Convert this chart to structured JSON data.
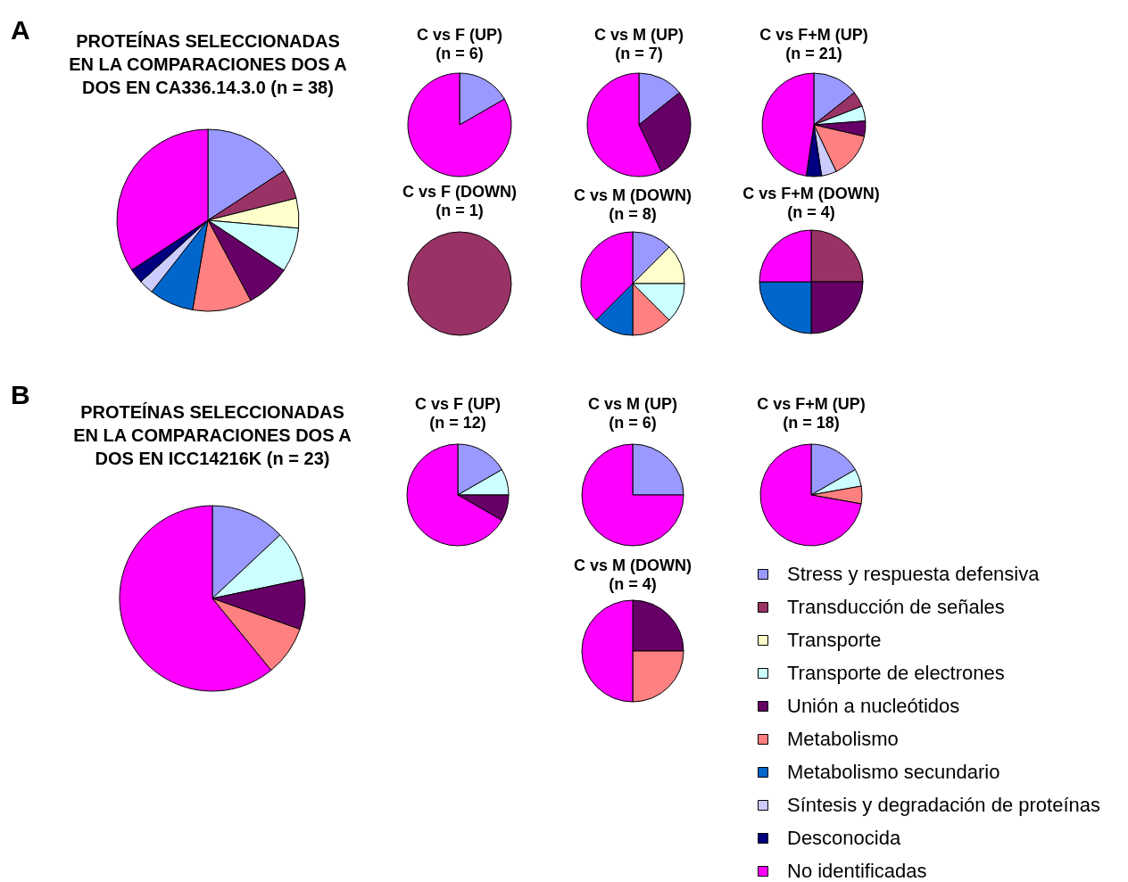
{
  "chart_data": [
    {
      "type": "pie",
      "title": "PROTEÍNAS SELECCIONADAS\nEN LA COMPARACIONES DOS A\nDOS EN CA336.14.3.0 (n = 38)",
      "annotations": [
        "A"
      ],
      "legend": "bottom right",
      "categories": [
        "Stress y respuesta defensiva",
        "Transducción de señales",
        "Transporte",
        "Transporte de electrones",
        "Unión a nucleótidos",
        "Metabolismo",
        "Metabolismo secundario",
        "Síntesis y degradación de proteínas",
        "Desconocida",
        "No identificadas"
      ],
      "values": [
        15.8,
        5.3,
        5.3,
        7.9,
        7.9,
        10.5,
        7.9,
        2.6,
        2.6,
        34.2
      ],
      "colors": [
        "#9999ff",
        "#993366",
        "#ffffcc",
        "#ccffff",
        "#660066",
        "#ff8080",
        "#0066cc",
        "#ccccff",
        "#000080",
        "#ff00ff"
      ]
    },
    {
      "type": "pie",
      "title": "C vs F (UP)",
      "subtitle": "(n = 6)",
      "categories": [
        null,
        null
      ],
      "values": [
        16.7,
        83.3
      ],
      "colors": [
        "#9999ff",
        "#ff00ff"
      ]
    },
    {
      "type": "pie",
      "title": "C vs M (UP)",
      "subtitle": "(n = 7)",
      "categories": [
        null,
        null,
        null
      ],
      "values": [
        14.3,
        28.6,
        57.1
      ],
      "colors": [
        "#9999ff",
        "#660066",
        "#ff00ff"
      ]
    },
    {
      "type": "pie",
      "title": "C vs F+M (UP)",
      "subtitle": "(n = 21)",
      "categories": [
        null,
        null,
        null,
        null,
        null,
        null,
        null,
        null
      ],
      "values": [
        14.3,
        4.8,
        4.7,
        4.8,
        14.3,
        4.7,
        4.8,
        47.6
      ],
      "colors": [
        "#9999ff",
        "#993366",
        "#ccffff",
        "#660066",
        "#ff8080",
        "#ccccff",
        "#000080",
        "#ff00ff"
      ]
    },
    {
      "type": "pie",
      "title": "C vs F (DOWN)",
      "subtitle": "(n = 1)",
      "categories": [
        null
      ],
      "values": [
        100
      ],
      "colors": [
        "#993366"
      ]
    },
    {
      "type": "pie",
      "title": "C vs M (DOWN)",
      "subtitle": "(n = 8)",
      "categories": [
        null,
        null,
        null,
        null,
        null,
        null
      ],
      "values": [
        12.5,
        12.5,
        12.5,
        12.5,
        12.5,
        37.5
      ],
      "colors": [
        "#9999ff",
        "#ffffcc",
        "#ccffff",
        "#ff8080",
        "#0066cc",
        "#ff00ff"
      ]
    },
    {
      "type": "pie",
      "title": "C vs F+M (DOWN)",
      "subtitle": "(n = 4)",
      "categories": [
        null,
        null,
        null,
        null
      ],
      "values": [
        25,
        25,
        25,
        25
      ],
      "colors": [
        "#993366",
        "#660066",
        "#0066cc",
        "#ff00ff"
      ]
    },
    {
      "type": "pie",
      "title": "PROTEÍNAS SELECCIONADAS\nEN LA COMPARACIONES DOS A\nDOS EN ICC14216K (n = 23)",
      "annotations": [
        "B"
      ],
      "categories": [
        null,
        null,
        null,
        null,
        null
      ],
      "values": [
        13.0,
        8.7,
        8.7,
        8.7,
        60.9
      ],
      "colors": [
        "#9999ff",
        "#ccffff",
        "#660066",
        "#ff8080",
        "#ff00ff"
      ]
    },
    {
      "type": "pie",
      "title": "C vs F (UP)",
      "subtitle": "(n = 12)",
      "categories": [
        null,
        null,
        null,
        null
      ],
      "values": [
        16.7,
        8.3,
        8.3,
        66.7
      ],
      "colors": [
        "#9999ff",
        "#ccffff",
        "#660066",
        "#ff00ff"
      ]
    },
    {
      "type": "pie",
      "title": "C vs M (UP)",
      "subtitle": "(n = 6)",
      "categories": [
        null,
        null
      ],
      "values": [
        25,
        75
      ],
      "colors": [
        "#9999ff",
        "#ff00ff"
      ]
    },
    {
      "type": "pie",
      "title": "C vs F+M (UP)",
      "subtitle": "(n = 18)",
      "categories": [
        null,
        null,
        null,
        null
      ],
      "values": [
        16.7,
        5.5,
        5.6,
        72.2
      ],
      "colors": [
        "#9999ff",
        "#ccffff",
        "#ff8080",
        "#ff00ff"
      ]
    },
    {
      "type": "pie",
      "title": "C vs M (DOWN)",
      "subtitle": "(n = 4)",
      "categories": [
        null,
        null,
        null
      ],
      "values": [
        25,
        25,
        50
      ],
      "colors": [
        "#660066",
        "#ff8080",
        "#ff00ff"
      ]
    }
  ]
}
